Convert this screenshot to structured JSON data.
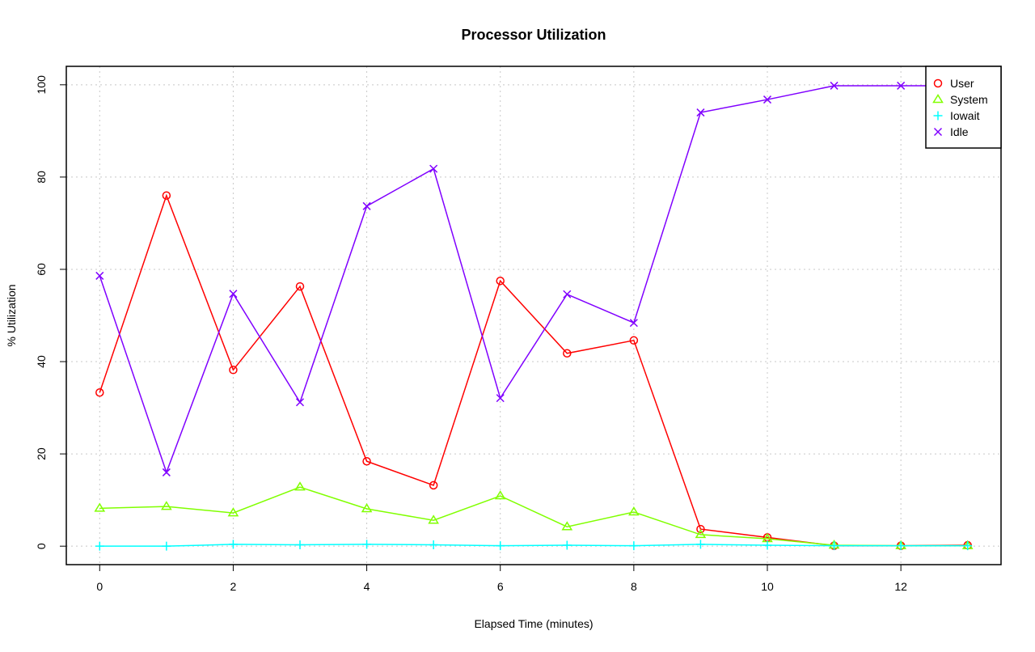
{
  "chart_data": {
    "type": "line",
    "title": "Processor Utilization",
    "xlabel": "Elapsed Time (minutes)",
    "ylabel": "% Utilization",
    "xlim": [
      -0.5,
      13.5
    ],
    "ylim": [
      -4,
      104
    ],
    "xticks": [
      0,
      2,
      4,
      6,
      8,
      10,
      12
    ],
    "yticks": [
      0,
      20,
      40,
      60,
      80,
      100
    ],
    "grid": true,
    "legend_position": "top-right",
    "x": [
      0,
      1,
      2,
      3,
      4,
      5,
      6,
      7,
      8,
      9,
      10,
      11,
      12,
      13
    ],
    "series": [
      {
        "name": "User",
        "color": "#ff0000",
        "marker": "circle",
        "values": [
          33.3,
          76.0,
          38.2,
          56.3,
          18.4,
          13.2,
          57.5,
          41.8,
          44.6,
          3.7,
          1.9,
          0.1,
          0.1,
          0.2
        ]
      },
      {
        "name": "System",
        "color": "#80ff00",
        "marker": "triangle",
        "values": [
          8.2,
          8.6,
          7.2,
          12.8,
          8.1,
          5.6,
          10.9,
          4.2,
          7.4,
          2.5,
          1.6,
          0.2,
          0.1,
          0.1
        ]
      },
      {
        "name": "Iowait",
        "color": "#00ffff",
        "marker": "plus",
        "values": [
          0.0,
          0.0,
          0.4,
          0.3,
          0.4,
          0.3,
          0.1,
          0.2,
          0.1,
          0.4,
          0.2,
          0.1,
          0.1,
          0.1
        ]
      },
      {
        "name": "Idle",
        "color": "#8000ff",
        "marker": "cross",
        "values": [
          58.6,
          16.0,
          54.7,
          31.2,
          73.7,
          81.8,
          32.1,
          54.6,
          48.4,
          94.0,
          96.8,
          99.8,
          99.8,
          99.8
        ]
      }
    ]
  }
}
